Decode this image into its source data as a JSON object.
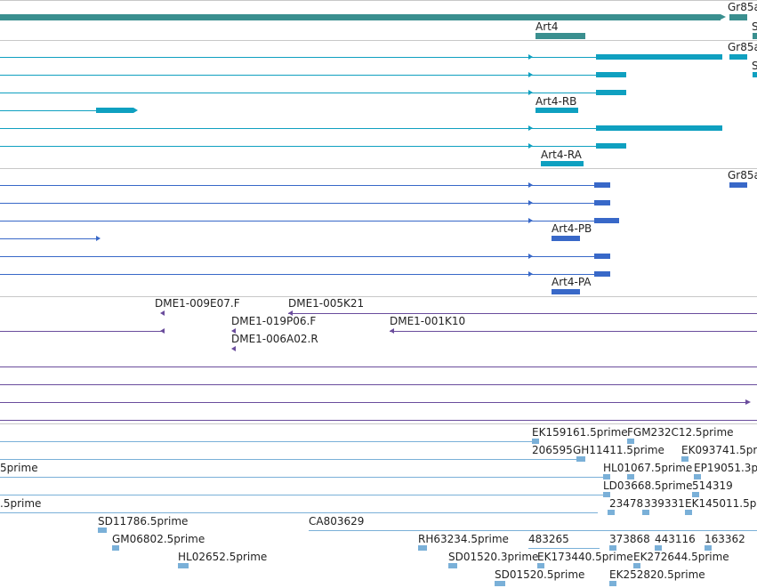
{
  "colors": {
    "gene": "#3a8f8f",
    "transcript": "#0fa0c0",
    "protein": "#3868c8",
    "clone": "#6a4c9c",
    "est": "#7ab0d8",
    "separator": "#c8c8c8"
  },
  "tracks": {
    "gene": {
      "labels": [
        "Gr85a",
        "Art4",
        "S"
      ]
    },
    "transcripts": {
      "labels": [
        "Gr85a",
        "S",
        "Art4-RB",
        "Art4-RA"
      ]
    },
    "proteins": {
      "labels": [
        "Gr85a",
        "Art4-PB",
        "Art4-PA"
      ]
    },
    "clones": {
      "labels": [
        "DME1-009E07.F",
        "DME1-005K21",
        "DME1-019P06.F",
        "DME1-001K10",
        "DME1-006A02.R"
      ]
    },
    "ests": {
      "labels": [
        "EK159161.5prime",
        "FGM232C12.5prime",
        "206595",
        "GH11411.5prime",
        "EK093741.5prime",
        "5prime",
        "HL01067.5prime",
        "EP19051.3p",
        "LD03668.5prime",
        "514319",
        ".5prime",
        "23478",
        "339331",
        "EK145011.5p",
        "SD11786.5prime",
        "CA803629",
        "GM06802.5prime",
        "RH63234.5prime",
        "483265",
        "373868",
        "443116",
        "163362",
        "HL02652.5prime",
        "SD01520.3prime",
        "EK173440.5prime",
        "EK272644.5prime",
        "SD01520.5prime",
        "EK252820.5prime"
      ]
    }
  }
}
